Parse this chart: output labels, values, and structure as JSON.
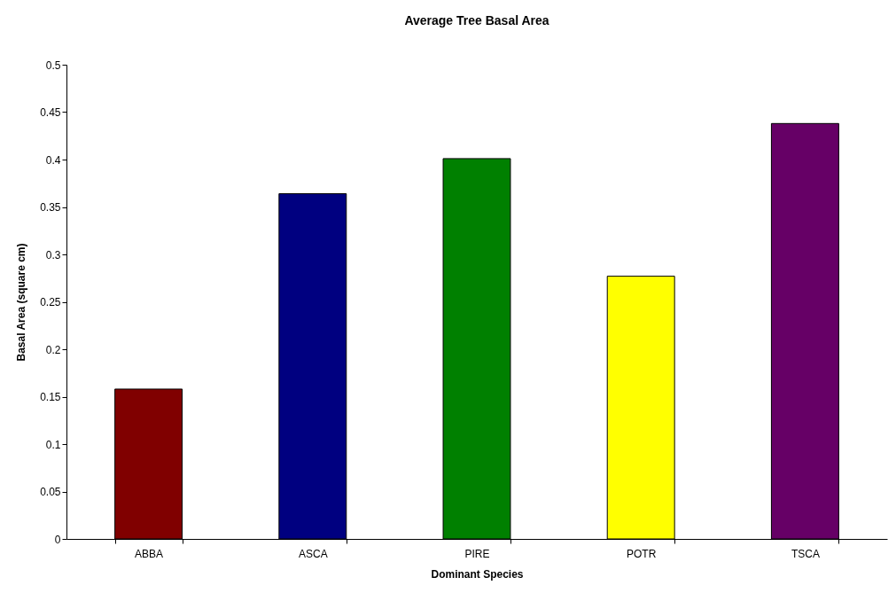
{
  "chart_data": {
    "type": "bar",
    "title": "Average Tree Basal Area",
    "xlabel": "Dominant Species",
    "ylabel": "Basal Area (square cm)",
    "categories": [
      "ABBA",
      "ASCA",
      "PIRE",
      "POTR",
      "TSCA"
    ],
    "values": [
      0.158,
      0.364,
      0.401,
      0.277,
      0.438
    ],
    "colors": [
      "#800000",
      "#000080",
      "#008000",
      "#ffff00",
      "#660066"
    ],
    "ylim": [
      0,
      0.5
    ],
    "yticks": [
      0,
      0.05,
      0.1,
      0.15,
      0.2,
      0.25,
      0.3,
      0.35,
      0.4,
      0.45,
      0.5
    ],
    "grid": false,
    "legend": false
  }
}
